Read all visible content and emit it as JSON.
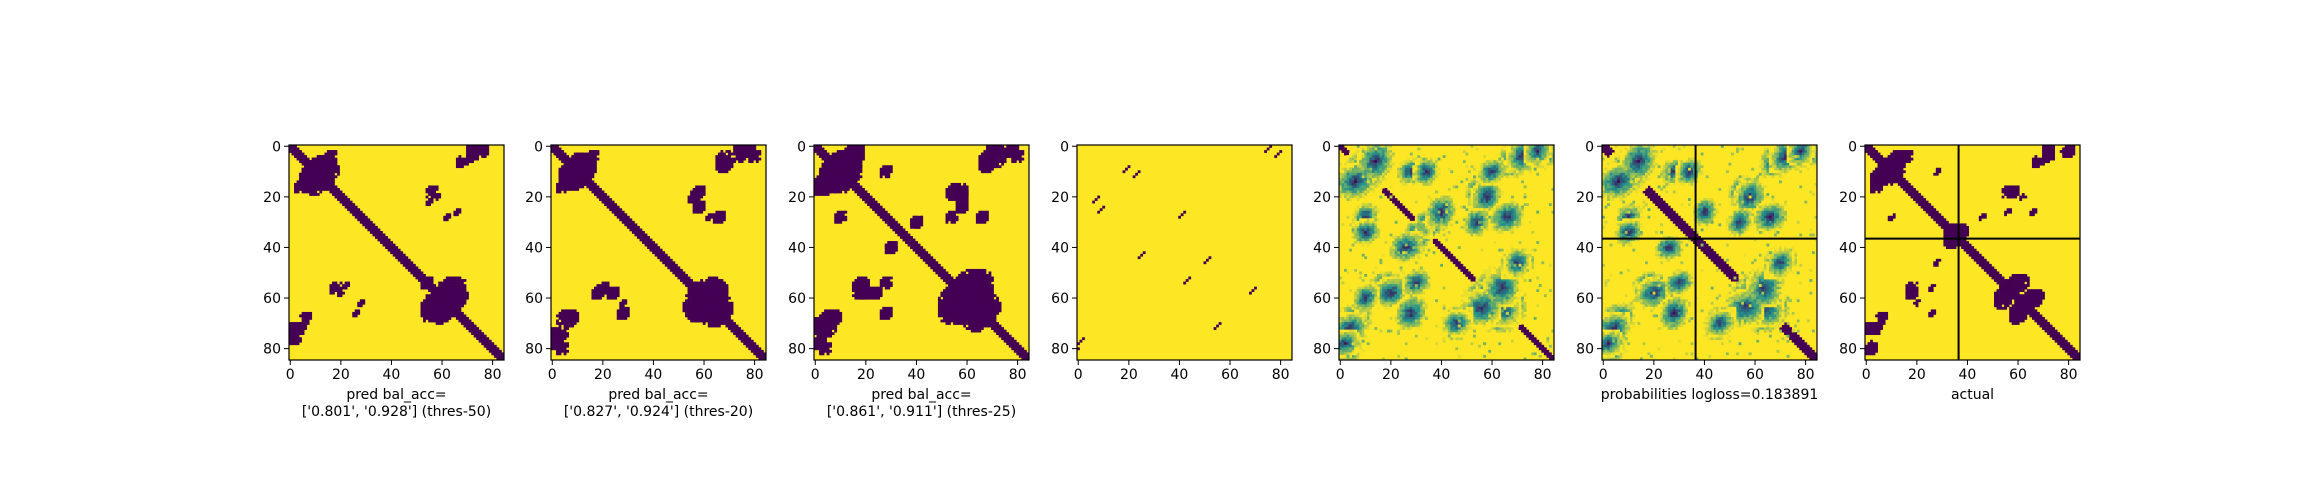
{
  "figure": {
    "background": "#ffffff"
  },
  "colors": {
    "low": "#440154",
    "mid": "#21918c",
    "high": "#fde725",
    "lines": "#000000"
  },
  "chart_data": [
    {
      "type": "heatmap",
      "title": "",
      "xlabel": "pred bal_acc=\n['0.801', '0.928'] (thres-50)",
      "ylabel": "",
      "size": 85,
      "xticks": [
        0,
        20,
        40,
        60,
        80
      ],
      "yticks": [
        0,
        20,
        40,
        60,
        80
      ],
      "diagonal_width": 2,
      "boundary_lines": [],
      "blobs": [
        [
          10,
          12,
          5
        ],
        [
          12,
          8,
          3
        ],
        [
          16,
          4,
          2
        ],
        [
          0,
          72,
          2
        ],
        [
          2,
          76,
          2
        ],
        [
          18,
          56,
          2
        ],
        [
          22,
          55,
          1
        ],
        [
          56,
          64,
          4
        ],
        [
          60,
          66,
          3
        ],
        [
          66,
          60,
          3
        ],
        [
          68,
          6,
          2
        ],
        [
          72,
          4,
          2
        ],
        [
          76,
          2,
          1
        ],
        [
          58,
          20,
          1
        ],
        [
          62,
          28,
          1
        ],
        [
          26,
          66,
          1
        ],
        [
          54,
          54,
          2
        ]
      ]
    },
    {
      "type": "heatmap",
      "title": "",
      "xlabel": "pred bal_acc=\n['0.827', '0.924'] (thres-20)",
      "ylabel": "",
      "size": 85,
      "xticks": [
        0,
        20,
        40,
        60,
        80
      ],
      "yticks": [
        0,
        20,
        40,
        60,
        80
      ],
      "diagonal_width": 2,
      "boundary_lines": [],
      "blobs": [
        [
          10,
          10,
          5
        ],
        [
          12,
          8,
          4
        ],
        [
          16,
          4,
          2
        ],
        [
          0,
          74,
          2
        ],
        [
          4,
          80,
          2
        ],
        [
          20,
          56,
          2
        ],
        [
          24,
          58,
          2
        ],
        [
          58,
          62,
          5
        ],
        [
          64,
          66,
          4
        ],
        [
          66,
          58,
          3
        ],
        [
          68,
          6,
          3
        ],
        [
          74,
          4,
          2
        ],
        [
          78,
          2,
          2
        ],
        [
          58,
          18,
          2
        ],
        [
          62,
          28,
          1
        ],
        [
          28,
          66,
          2
        ],
        [
          56,
          56,
          2
        ],
        [
          40,
          40,
          1
        ]
      ]
    },
    {
      "type": "heatmap",
      "title": "",
      "xlabel": "pred bal_acc=\n['0.861', '0.911'] (thres-25)",
      "ylabel": "",
      "size": 85,
      "xticks": [
        0,
        20,
        40,
        60,
        80
      ],
      "yticks": [
        0,
        20,
        40,
        60,
        80
      ],
      "diagonal_width": 2,
      "boundary_lines": [],
      "blobs": [
        [
          10,
          10,
          6
        ],
        [
          14,
          6,
          4
        ],
        [
          16,
          2,
          3
        ],
        [
          0,
          72,
          3
        ],
        [
          4,
          80,
          2
        ],
        [
          18,
          56,
          3
        ],
        [
          24,
          58,
          2
        ],
        [
          56,
          62,
          6
        ],
        [
          64,
          66,
          5
        ],
        [
          64,
          58,
          4
        ],
        [
          68,
          6,
          3
        ],
        [
          72,
          4,
          3
        ],
        [
          78,
          2,
          2
        ],
        [
          58,
          20,
          2
        ],
        [
          54,
          28,
          2
        ],
        [
          28,
          66,
          2
        ],
        [
          30,
          40,
          2
        ],
        [
          40,
          30,
          2
        ],
        [
          10,
          28,
          2
        ]
      ]
    },
    {
      "type": "heatmap",
      "title": "",
      "xlabel": "",
      "ylabel": "",
      "size": 85,
      "xticks": [
        0,
        20,
        40,
        60,
        80
      ],
      "yticks": [
        0,
        20,
        40,
        60,
        80
      ],
      "diagonal_width": 0,
      "boundary_lines": [],
      "segments": [
        [
          0,
          76,
          3
        ],
        [
          2,
          80,
          3
        ],
        [
          76,
          2,
          3
        ],
        [
          80,
          0,
          3
        ],
        [
          10,
          24,
          3
        ],
        [
          24,
          10,
          3
        ],
        [
          26,
          42,
          3
        ],
        [
          42,
          26,
          3
        ],
        [
          44,
          52,
          3
        ],
        [
          52,
          44,
          3
        ],
        [
          56,
          70,
          3
        ],
        [
          70,
          56,
          3
        ],
        [
          20,
          8,
          3
        ],
        [
          8,
          20,
          3
        ]
      ],
      "blobs": []
    },
    {
      "type": "heatmap",
      "title": "",
      "xlabel": "",
      "ylabel": "",
      "size": 85,
      "xticks": [
        0,
        20,
        40,
        60,
        80
      ],
      "yticks": [
        0,
        20,
        40,
        60,
        80
      ],
      "diagonal_width": 1,
      "probabilistic": true,
      "boundary_lines": [],
      "blobs": [
        [
          10,
          10,
          6
        ],
        [
          14,
          6,
          5
        ],
        [
          0,
          72,
          3
        ],
        [
          4,
          80,
          3
        ],
        [
          18,
          56,
          4
        ],
        [
          26,
          40,
          4
        ],
        [
          30,
          36,
          4
        ],
        [
          56,
          62,
          6
        ],
        [
          64,
          66,
          5
        ],
        [
          64,
          56,
          5
        ],
        [
          68,
          6,
          4
        ],
        [
          72,
          4,
          4
        ],
        [
          78,
          2,
          3
        ],
        [
          58,
          20,
          4
        ],
        [
          54,
          30,
          3
        ],
        [
          28,
          66,
          4
        ],
        [
          40,
          26,
          4
        ],
        [
          10,
          28,
          3
        ],
        [
          46,
          70,
          4
        ],
        [
          70,
          46,
          3
        ],
        [
          34,
          10,
          3
        ],
        [
          10,
          60,
          3
        ]
      ]
    },
    {
      "type": "heatmap",
      "title": "",
      "xlabel": "probabilities logloss=0.183891",
      "ylabel": "",
      "size": 85,
      "xticks": [
        0,
        20,
        40,
        60,
        80
      ],
      "yticks": [
        0,
        20,
        40,
        60,
        80
      ],
      "diagonal_width": 2,
      "probabilistic": true,
      "boundary_lines": [
        37
      ],
      "blobs": [
        [
          10,
          10,
          6
        ],
        [
          14,
          6,
          5
        ],
        [
          0,
          72,
          3
        ],
        [
          4,
          80,
          3
        ],
        [
          18,
          56,
          4
        ],
        [
          56,
          62,
          6
        ],
        [
          64,
          66,
          5
        ],
        [
          64,
          56,
          5
        ],
        [
          68,
          6,
          4
        ],
        [
          72,
          4,
          4
        ],
        [
          78,
          2,
          3
        ],
        [
          58,
          20,
          4
        ],
        [
          54,
          30,
          3
        ],
        [
          28,
          66,
          4
        ],
        [
          40,
          26,
          3
        ],
        [
          10,
          28,
          3
        ],
        [
          46,
          70,
          4
        ],
        [
          70,
          46,
          3
        ],
        [
          34,
          10,
          3
        ]
      ]
    },
    {
      "type": "heatmap",
      "title": "",
      "xlabel": "actual",
      "ylabel": "",
      "size": 85,
      "xticks": [
        0,
        20,
        40,
        60,
        80
      ],
      "yticks": [
        0,
        20,
        40,
        60,
        80
      ],
      "diagonal_width": 2,
      "boundary_lines": [
        37
      ],
      "blobs": [
        [
          8,
          10,
          4
        ],
        [
          12,
          6,
          3
        ],
        [
          16,
          4,
          2
        ],
        [
          0,
          72,
          2
        ],
        [
          2,
          80,
          2
        ],
        [
          18,
          56,
          2
        ],
        [
          20,
          62,
          1
        ],
        [
          54,
          60,
          3
        ],
        [
          60,
          66,
          3
        ],
        [
          66,
          60,
          2
        ],
        [
          68,
          6,
          2
        ],
        [
          72,
          4,
          2
        ],
        [
          78,
          2,
          1
        ],
        [
          58,
          18,
          2
        ],
        [
          56,
          26,
          1
        ],
        [
          26,
          66,
          1
        ],
        [
          34,
          36,
          3
        ],
        [
          46,
          28,
          1
        ],
        [
          10,
          28,
          1
        ]
      ]
    }
  ]
}
